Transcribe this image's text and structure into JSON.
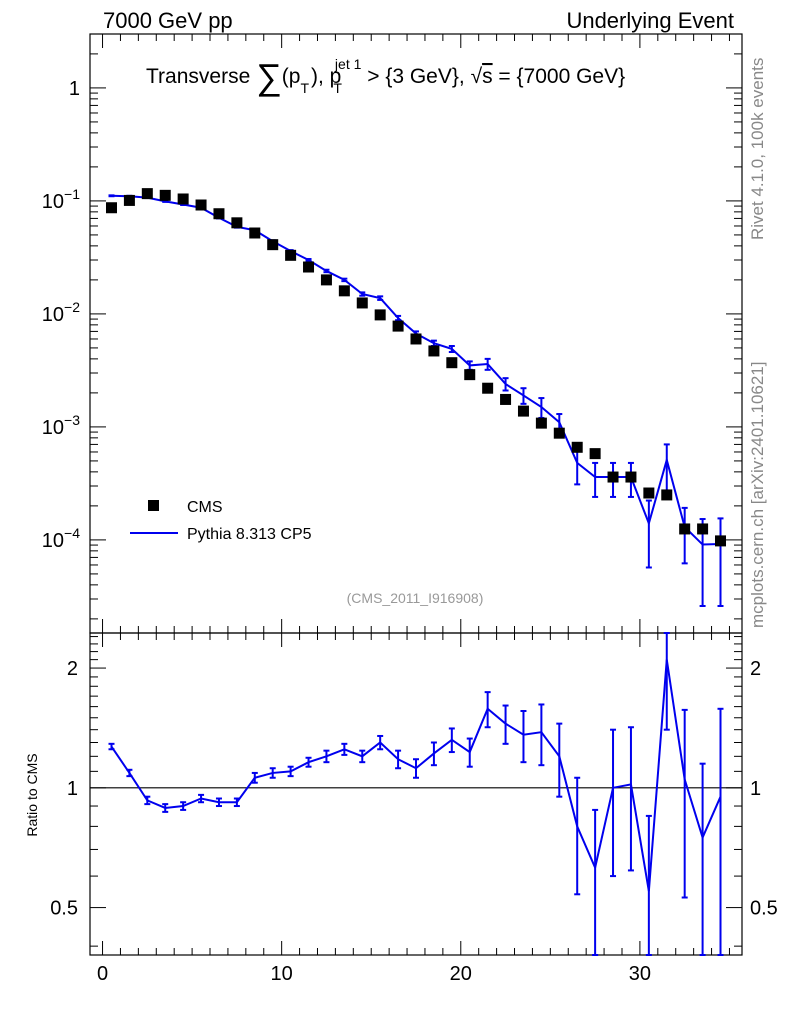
{
  "header": {
    "left": "7000 GeV pp",
    "right": "Underlying Event"
  },
  "side_labels": {
    "rivet": "Rivet 4.1.0,  100k events",
    "mcplots": "mcplots.cern.ch [arXiv:2401.10621]"
  },
  "chart_data": {
    "type": "scatter",
    "title_parts": {
      "pre": "Transverse ",
      "sum": "∑",
      "open": "(p",
      "sub_t": "T",
      "mid": "), p",
      "sup_jet": "jet 1",
      "sub_t2": "T",
      "post": " > {3 GeV}, ",
      "sqrt": "√",
      "s": "s",
      "tail": " = {7000 GeV}"
    },
    "analysis_label": "(CMS_2011_I916908)",
    "main_panel": {
      "yscale": "log",
      "ylim": [
        1.5e-05,
        3
      ],
      "ytick_labels": [
        {
          "base": "1",
          "exp": ""
        },
        {
          "base": "10",
          "exp": "−1"
        },
        {
          "base": "10",
          "exp": "−2"
        },
        {
          "base": "10",
          "exp": "−3"
        },
        {
          "base": "10",
          "exp": "−4"
        }
      ],
      "ytick_values": [
        1,
        0.1,
        0.01,
        0.001,
        0.0001
      ]
    },
    "ratio_panel": {
      "ylabel": "Ratio to CMS",
      "yscale": "log",
      "ylim": [
        0.38,
        2.45
      ],
      "ytick_labels": [
        "2",
        "1",
        "0.5"
      ],
      "ytick_values": [
        2,
        1,
        0.5
      ],
      "reference_line": 1
    },
    "xaxis": {
      "xlim": [
        -0.7,
        35.7
      ],
      "tick_labels": [
        "0",
        "10",
        "20",
        "30"
      ],
      "tick_values": [
        0,
        10,
        20,
        30
      ]
    },
    "x": [
      0.5,
      1.5,
      2.5,
      3.5,
      4.5,
      5.5,
      6.5,
      7.5,
      8.5,
      9.5,
      10.5,
      11.5,
      12.5,
      13.5,
      14.5,
      15.5,
      16.5,
      17.5,
      18.5,
      19.5,
      20.5,
      21.5,
      22.5,
      23.5,
      24.5,
      25.5,
      26.5,
      27.5,
      28.5,
      29.5,
      30.5,
      31.5,
      32.5,
      33.5,
      34.5
    ],
    "series": [
      {
        "name": "CMS",
        "marker": "square",
        "color": "#000000",
        "values": [
          0.087,
          0.101,
          0.116,
          0.112,
          0.104,
          0.092,
          0.077,
          0.064,
          0.052,
          0.041,
          0.033,
          0.026,
          0.02,
          0.016,
          0.0125,
          0.0098,
          0.0078,
          0.006,
          0.0047,
          0.0037,
          0.0029,
          0.0022,
          0.00175,
          0.00138,
          0.00108,
          0.00088,
          0.00066,
          0.00058,
          0.00036,
          0.00036,
          0.00026,
          0.00025,
          0.000125,
          0.000125,
          9.8e-05
        ]
      },
      {
        "name": "Pythia 8.313 CP5",
        "marker": "line",
        "color": "#0000ee",
        "values": [
          0.111,
          0.11,
          0.107,
          0.099,
          0.093,
          0.087,
          0.071,
          0.059,
          0.055,
          0.044,
          0.036,
          0.03,
          0.024,
          0.02,
          0.015,
          0.0138,
          0.0092,
          0.0067,
          0.0055,
          0.0049,
          0.0035,
          0.0036,
          0.0024,
          0.0019,
          0.0015,
          0.0011,
          0.00048,
          0.00036,
          0.00036,
          0.00036,
          0.00014,
          0.00051,
          0.00013,
          9.1e-05,
          9.2e-05
        ],
        "errors_low": [
          0.001,
          0.001,
          0.001,
          0.001,
          0.001,
          0.001,
          0.001,
          0.001,
          0.001,
          0.0008,
          0.0007,
          0.0006,
          0.0006,
          0.0005,
          0.0005,
          0.0005,
          0.0004,
          0.0003,
          0.0003,
          0.0003,
          0.0003,
          0.0004,
          0.0003,
          0.0003,
          0.0003,
          0.0002,
          0.00017,
          0.00012,
          0.00012,
          0.00012,
          8.3e-05,
          0.00024,
          6.8e-05,
          6.5e-05,
          6.6e-05
        ],
        "errors_high": [
          0.001,
          0.001,
          0.001,
          0.001,
          0.001,
          0.001,
          0.001,
          0.001,
          0.001,
          0.0008,
          0.0007,
          0.0006,
          0.0006,
          0.0005,
          0.0005,
          0.0005,
          0.0004,
          0.0003,
          0.0003,
          0.0003,
          0.0003,
          0.0004,
          0.0003,
          0.0003,
          0.0003,
          0.0002,
          0.00017,
          0.00012,
          0.00012,
          0.00012,
          8.3e-05,
          0.00019,
          6.2e-05,
          6.2e-05,
          6.3e-05
        ]
      }
    ],
    "ratio": {
      "values": [
        1.27,
        1.09,
        0.93,
        0.89,
        0.9,
        0.94,
        0.92,
        0.92,
        1.06,
        1.09,
        1.1,
        1.16,
        1.2,
        1.25,
        1.2,
        1.3,
        1.18,
        1.12,
        1.22,
        1.32,
        1.23,
        1.58,
        1.45,
        1.36,
        1.38,
        1.2,
        0.8,
        0.63,
        1.0,
        1.02,
        0.55,
        2.1,
        1.05,
        0.75,
        0.95
      ],
      "errors_low": [
        0.02,
        0.02,
        0.02,
        0.02,
        0.02,
        0.02,
        0.02,
        0.02,
        0.03,
        0.03,
        0.03,
        0.03,
        0.04,
        0.04,
        0.04,
        0.05,
        0.06,
        0.06,
        0.08,
        0.09,
        0.1,
        0.16,
        0.16,
        0.2,
        0.24,
        0.25,
        0.26,
        0.25,
        0.4,
        0.4,
        0.3,
        0.7,
        0.52,
        0.4,
        0.63
      ],
      "errors_high": [
        0.02,
        0.02,
        0.02,
        0.02,
        0.02,
        0.02,
        0.02,
        0.02,
        0.03,
        0.03,
        0.03,
        0.03,
        0.04,
        0.04,
        0.04,
        0.05,
        0.06,
        0.06,
        0.08,
        0.09,
        0.1,
        0.16,
        0.16,
        0.2,
        0.24,
        0.25,
        0.26,
        0.25,
        0.4,
        0.4,
        0.3,
        0.7,
        0.52,
        0.4,
        0.63
      ]
    }
  }
}
